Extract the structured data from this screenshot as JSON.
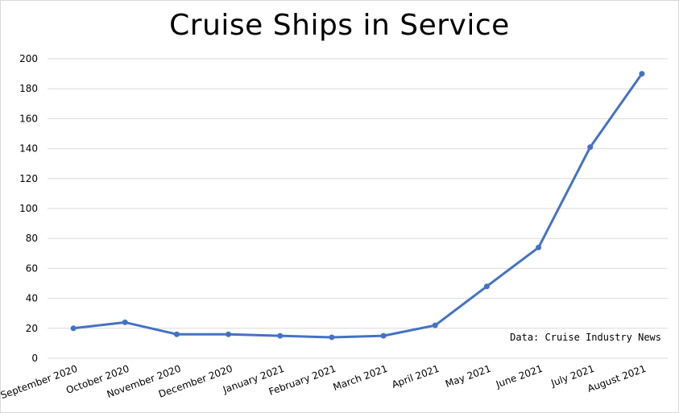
{
  "chart_data": {
    "type": "line",
    "title": "Cruise Ships in Service",
    "xlabel": "",
    "ylabel": "",
    "categories": [
      "September 2020",
      "October 2020",
      "November 2020",
      "December 2020",
      "January 2021",
      "February 2021",
      "March 2021",
      "April 2021",
      "May 2021",
      "June 2021",
      "July 2021",
      "August 2021"
    ],
    "series": [
      {
        "values": [
          20,
          24,
          16,
          16,
          15,
          14,
          15,
          22,
          48,
          74,
          141,
          190
        ],
        "color": "#4472c4"
      }
    ],
    "ylim": [
      0,
      200
    ],
    "yticks": [
      0,
      20,
      40,
      60,
      80,
      100,
      120,
      140,
      160,
      180,
      200
    ],
    "grid": true,
    "legend": "none",
    "annotation": "Data: Cruise Industry News"
  }
}
